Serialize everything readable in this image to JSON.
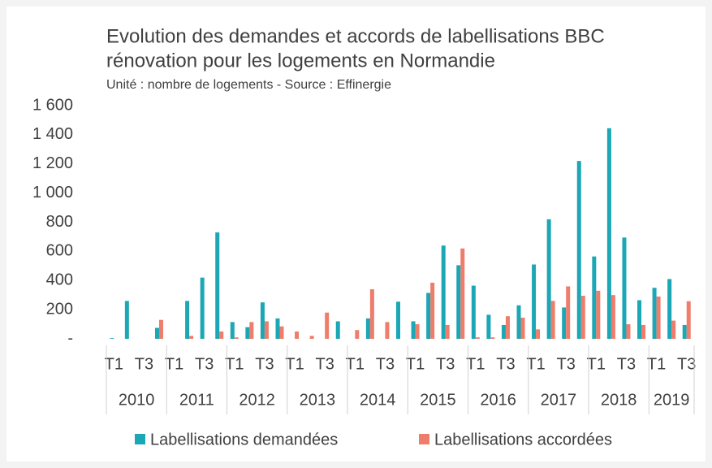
{
  "chart_data": {
    "type": "bar",
    "title": "Evolution des demandes et accords de labellisations BBC",
    "title_line2": "rénovation pour les logements en Normandie",
    "subtitle": "Unité : nombre de logements - Source : Effinergie",
    "categories": [
      "T1",
      null,
      "T3",
      null,
      "T1",
      null,
      "T3",
      null,
      "T1",
      null,
      "T3",
      null,
      "T1",
      null,
      "T3",
      null,
      "T1",
      null,
      "T3",
      null,
      "T1",
      null,
      "T3",
      null,
      "T1",
      null,
      "T3",
      null,
      "T1",
      null,
      "T3",
      null,
      "T1",
      null,
      "T3",
      null,
      "T1",
      null,
      "T3"
    ],
    "groups": [
      {
        "label": "2010",
        "count": 4
      },
      {
        "label": "2011",
        "count": 4
      },
      {
        "label": "2012",
        "count": 4
      },
      {
        "label": "2013",
        "count": 4
      },
      {
        "label": "2014",
        "count": 4
      },
      {
        "label": "2015",
        "count": 4
      },
      {
        "label": "2016",
        "count": 4
      },
      {
        "label": "2017",
        "count": 4
      },
      {
        "label": "2018",
        "count": 4
      },
      {
        "label": "2019",
        "count": 3
      }
    ],
    "series": [
      {
        "name": "Labellisations demandées",
        "color": "#1ba7b5",
        "values": [
          5,
          260,
          0,
          75,
          0,
          260,
          420,
          730,
          115,
          80,
          250,
          140,
          0,
          0,
          0,
          120,
          0,
          140,
          0,
          255,
          120,
          315,
          640,
          505,
          365,
          165,
          95,
          230,
          510,
          820,
          215,
          1220,
          565,
          1445,
          695,
          265,
          350,
          410,
          95
        ]
      },
      {
        "name": "Labellisations accordées",
        "color": "#ee7d6b",
        "values": [
          0,
          0,
          0,
          130,
          0,
          20,
          0,
          50,
          10,
          115,
          120,
          85,
          50,
          20,
          180,
          0,
          60,
          340,
          115,
          0,
          100,
          385,
          95,
          620,
          10,
          10,
          155,
          145,
          65,
          260,
          360,
          295,
          330,
          300,
          100,
          95,
          290,
          125,
          258
        ]
      }
    ],
    "ylim": [
      0,
      1600
    ],
    "yticks": [
      {
        "value": 0,
        "label": "-"
      },
      200,
      400,
      600,
      800,
      {
        "value": 1000,
        "label": "1 000"
      },
      {
        "value": 1200,
        "label": "1 200"
      },
      {
        "value": 1400,
        "label": "1 400"
      },
      {
        "value": 1600,
        "label": "1 600"
      }
    ],
    "legend": "bottom"
  }
}
